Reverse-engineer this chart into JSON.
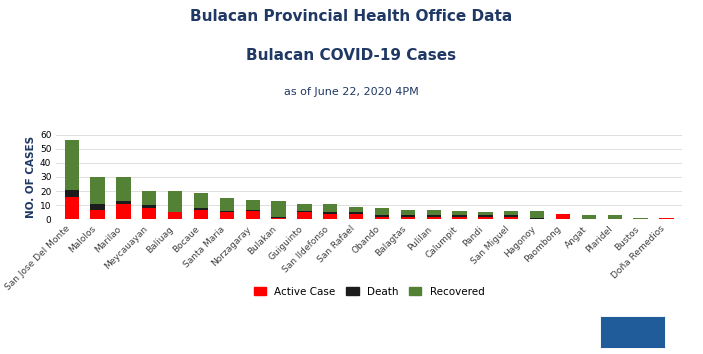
{
  "title_line1": "Bulacan Provincial Health Office Data",
  "title_line2": "Bulacan COVID-19 Cases",
  "subtitle": "as of June 22, 2020 4PM",
  "ylabel": "NO. OF CASES",
  "categories": [
    "San Jose Del Monte",
    "Malolos",
    "Marilao",
    "Meycauayan",
    "Baliuag",
    "Bocaue",
    "Santa Maria",
    "Norzagaray",
    "Bulakan",
    "Guiguinto",
    "San Ildefonso",
    "San Rafael",
    "Obando",
    "Balagtas",
    "Pulilan",
    "Calumpit",
    "Pandi",
    "San Miguel",
    "Hagonoy",
    "Paombong",
    "Angat",
    "Plaridel",
    "Bustos",
    "Doña Remedios"
  ],
  "active": [
    16,
    7,
    11,
    8,
    5,
    7,
    5,
    6,
    1,
    5,
    4,
    4,
    2,
    2,
    2,
    2,
    2,
    2,
    0,
    4,
    0,
    0,
    0,
    1
  ],
  "death": [
    5,
    4,
    2,
    2,
    0,
    1,
    1,
    1,
    1,
    1,
    1,
    1,
    1,
    1,
    1,
    1,
    1,
    1,
    1,
    0,
    0,
    0,
    0,
    0
  ],
  "recovered": [
    35,
    19,
    17,
    10,
    15,
    11,
    9,
    7,
    11,
    5,
    6,
    4,
    5,
    4,
    4,
    3,
    2,
    3,
    5,
    0,
    3,
    3,
    1,
    0
  ],
  "active_color": "#FF0000",
  "death_color": "#1C1C1C",
  "recovered_color": "#538135",
  "title_color": "#1F3864",
  "bg_color": "#FFFFFF",
  "grid_color": "#D9D9D9",
  "ylim": [
    0,
    60
  ],
  "yticks": [
    0,
    10,
    20,
    30,
    40,
    50,
    60
  ],
  "legend_labels": [
    "Active Case",
    "Death",
    "Recovered"
  ],
  "bar_width": 0.55,
  "logo_color": "#1F5C99",
  "title_fontsize": 11,
  "subtitle_fontsize": 8,
  "ylabel_fontsize": 7.5,
  "tick_fontsize": 6.5,
  "legend_fontsize": 7.5
}
